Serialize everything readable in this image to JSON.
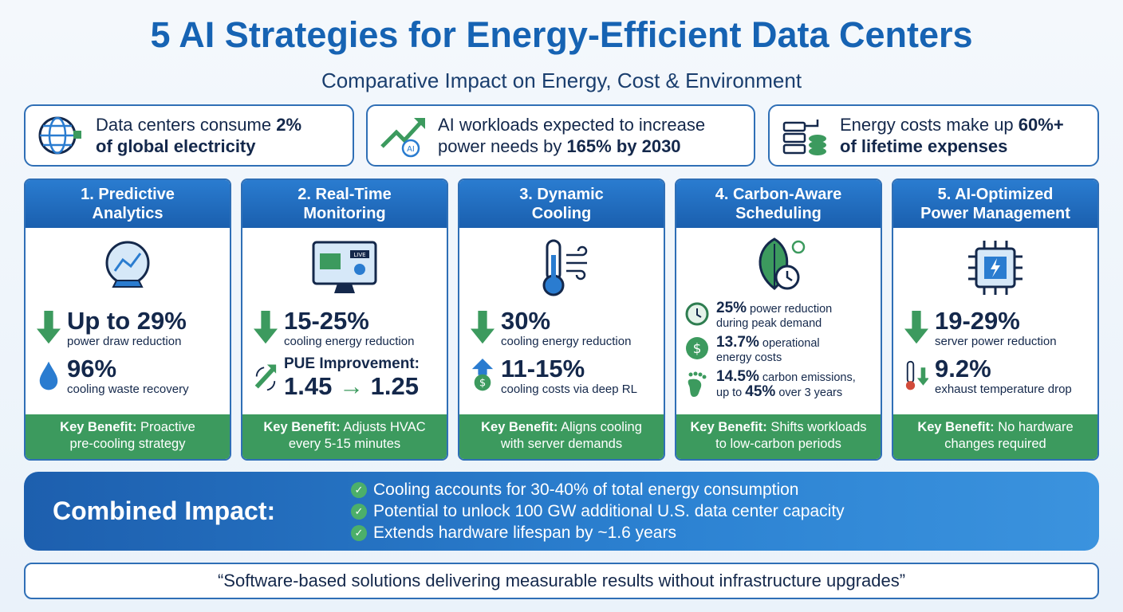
{
  "title": "5 AI Strategies for Energy-Efficient Data Centers",
  "subtitle": "Comparative Impact on Energy, Cost & Environment",
  "facts": [
    {
      "icon": "globe-plug-icon",
      "pre": "Data centers consume ",
      "bold": "2%",
      "line2": "of global electricity"
    },
    {
      "icon": "ai-trend-arrow-icon",
      "pre": "AI workloads expected to increase",
      "line2pre": "power needs by ",
      "bold": "165% by 2030"
    },
    {
      "icon": "server-coins-icon",
      "pre": "Energy costs make up ",
      "bold": "60%+",
      "line2": "of lifetime expenses"
    }
  ],
  "strategies": [
    {
      "title1": "1. Predictive",
      "title2": "Analytics",
      "s1": "Up to 29%",
      "s1l": "power draw reduction",
      "s2": "96%",
      "s2l": "cooling waste recovery",
      "kb": "Key Benefit:",
      "kbt1": " Proactive",
      "kbt2": "pre-cooling strategy"
    },
    {
      "title1": "2. Real-Time",
      "title2": "Monitoring",
      "s1": "15-25%",
      "s1l": "cooling energy reduction",
      "s2a": "PUE Improvement:",
      "s2b": "1.45",
      "s2c": "1.25",
      "kb": "Key Benefit:",
      "kbt1": " Adjusts HVAC",
      "kbt2": "every 5-15 minutes",
      "live": "LIVE"
    },
    {
      "title1": "3. Dynamic",
      "title2": "Cooling",
      "s1": "30%",
      "s1l": "cooling energy reduction",
      "s2": "11-15%",
      "s2l": "cooling costs via deep RL",
      "kb": "Key Benefit:",
      "kbt1": " Aligns cooling",
      "kbt2": "with server demands"
    },
    {
      "title1": "4. Carbon-Aware",
      "title2": "Scheduling",
      "a": "25%",
      "al": " power reduction",
      "al2": "during peak demand",
      "b": "13.7%",
      "bl": " operational",
      "bl2": "energy costs",
      "c": "14.5%",
      "cl": " carbon emissions,",
      "cl2a": "up to ",
      "cl2b": "45%",
      "cl2c": " over 3 years",
      "kb": "Key Benefit:",
      "kbt1": " Shifts workloads",
      "kbt2": "to low-carbon periods"
    },
    {
      "title1": "5. AI-Optimized",
      "title2": "Power Management",
      "s1": "19-29%",
      "s1l": "server power reduction",
      "s2": "9.2%",
      "s2l": "exhaust temperature drop",
      "kb": "Key Benefit:",
      "kbt1": " No hardware",
      "kbt2": "changes required"
    }
  ],
  "combined": {
    "label": "Combined Impact:",
    "items": [
      "Cooling accounts for 30-40% of total energy consumption",
      "Potential to unlock 100 GW additional U.S. data center capacity",
      "Extends hardware lifespan by ~1.6 years"
    ]
  },
  "quote": "“Software-based solutions delivering measurable results without infrastructure upgrades”",
  "colors": {
    "primary": "#1663b3",
    "green": "#3c9a5e",
    "navy": "#14284b"
  }
}
